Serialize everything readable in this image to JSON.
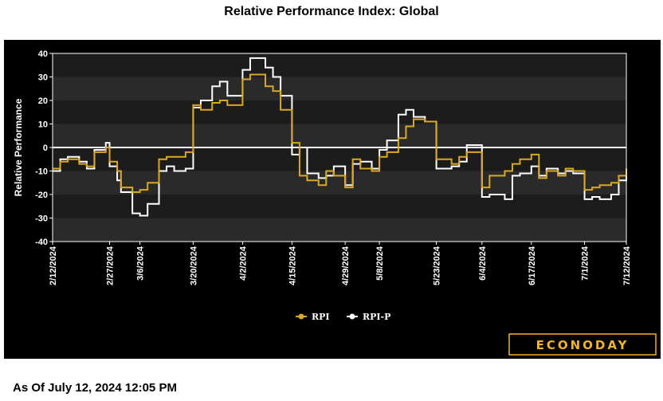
{
  "title": "Relative Performance Index: Global",
  "as_of": "As Of July 12, 2024 12:05 PM",
  "logo_text": "ECONODAY",
  "colors": {
    "panel_bg": "#000000",
    "band_dark": "#1c1c1c",
    "band_light": "#2a2a2a",
    "rpi": "#d9a825",
    "rpi_p": "#ffffff",
    "logo": "#f1b52a"
  },
  "chart_data": {
    "type": "line",
    "title": "Relative Performance Index: Global",
    "xlabel": "",
    "ylabel": "Relative Performance",
    "ylim": [
      -40,
      40
    ],
    "yticks": [
      40,
      30,
      20,
      10,
      0,
      -10,
      -20,
      -30,
      -40
    ],
    "xlim": [
      "2024-02-12",
      "2024-07-12"
    ],
    "xticks": [
      "2/12/2024",
      "2/27/2024",
      "3/6/2024",
      "3/20/2024",
      "4/2/2024",
      "4/15/2024",
      "4/29/2024",
      "5/8/2024",
      "5/23/2024",
      "6/4/2024",
      "6/17/2024",
      "7/1/2024",
      "7/12/2024"
    ],
    "zero_line": true,
    "grid": "alternating horizontal bands",
    "legend_position": "bottom-center",
    "x": [
      "2024-02-12",
      "2024-02-14",
      "2024-02-16",
      "2024-02-19",
      "2024-02-21",
      "2024-02-23",
      "2024-02-26",
      "2024-02-27",
      "2024-02-29",
      "2024-03-01",
      "2024-03-04",
      "2024-03-06",
      "2024-03-08",
      "2024-03-11",
      "2024-03-13",
      "2024-03-15",
      "2024-03-18",
      "2024-03-20",
      "2024-03-22",
      "2024-03-25",
      "2024-03-27",
      "2024-03-29",
      "2024-04-02",
      "2024-04-04",
      "2024-04-08",
      "2024-04-10",
      "2024-04-12",
      "2024-04-15",
      "2024-04-17",
      "2024-04-19",
      "2024-04-22",
      "2024-04-24",
      "2024-04-26",
      "2024-04-29",
      "2024-05-01",
      "2024-05-03",
      "2024-05-06",
      "2024-05-08",
      "2024-05-10",
      "2024-05-13",
      "2024-05-15",
      "2024-05-17",
      "2024-05-20",
      "2024-05-23",
      "2024-05-27",
      "2024-05-29",
      "2024-05-31",
      "2024-06-04",
      "2024-06-06",
      "2024-06-10",
      "2024-06-12",
      "2024-06-14",
      "2024-06-17",
      "2024-06-19",
      "2024-06-21",
      "2024-06-24",
      "2024-06-26",
      "2024-06-28",
      "2024-07-01",
      "2024-07-03",
      "2024-07-05",
      "2024-07-08",
      "2024-07-10",
      "2024-07-12"
    ],
    "series": [
      {
        "name": "RPI",
        "values": [
          -9,
          -6,
          -5,
          -7,
          -8,
          -2,
          0,
          -6,
          -10,
          -17,
          -19,
          -18,
          -15,
          -5,
          -4,
          -4,
          -2,
          18,
          16,
          19,
          20,
          18,
          29,
          31,
          26,
          24,
          16,
          2,
          -12,
          -14,
          -16,
          -10,
          -12,
          -17,
          -5,
          -9,
          -10,
          -4,
          -2,
          4,
          9,
          12,
          11,
          -5,
          -7,
          -4,
          -2,
          -17,
          -12,
          -10,
          -7,
          -5,
          -3,
          -13,
          -10,
          -12,
          -9,
          -10,
          -18,
          -17,
          -16,
          -15,
          -12,
          -9
        ]
      },
      {
        "name": "RPI-P",
        "values": [
          -10,
          -5,
          -4,
          -6,
          -9,
          -1,
          2,
          -8,
          -14,
          -19,
          -28,
          -29,
          -24,
          -10,
          -8,
          -10,
          -9,
          17,
          20,
          26,
          28,
          22,
          33,
          38,
          34,
          30,
          22,
          -3,
          0,
          -11,
          -13,
          -12,
          -8,
          -16,
          -7,
          -6,
          -9,
          -1,
          3,
          14,
          16,
          13,
          11,
          -9,
          -8,
          -6,
          1,
          -21,
          -20,
          -22,
          -12,
          -11,
          -8,
          -12,
          -9,
          -11,
          -10,
          -11,
          -22,
          -21,
          -22,
          -20,
          -14,
          -10
        ]
      }
    ]
  },
  "legend": [
    {
      "label": "RPI",
      "color": "#d9a825"
    },
    {
      "label": "RPI-P",
      "color": "#ffffff"
    }
  ]
}
